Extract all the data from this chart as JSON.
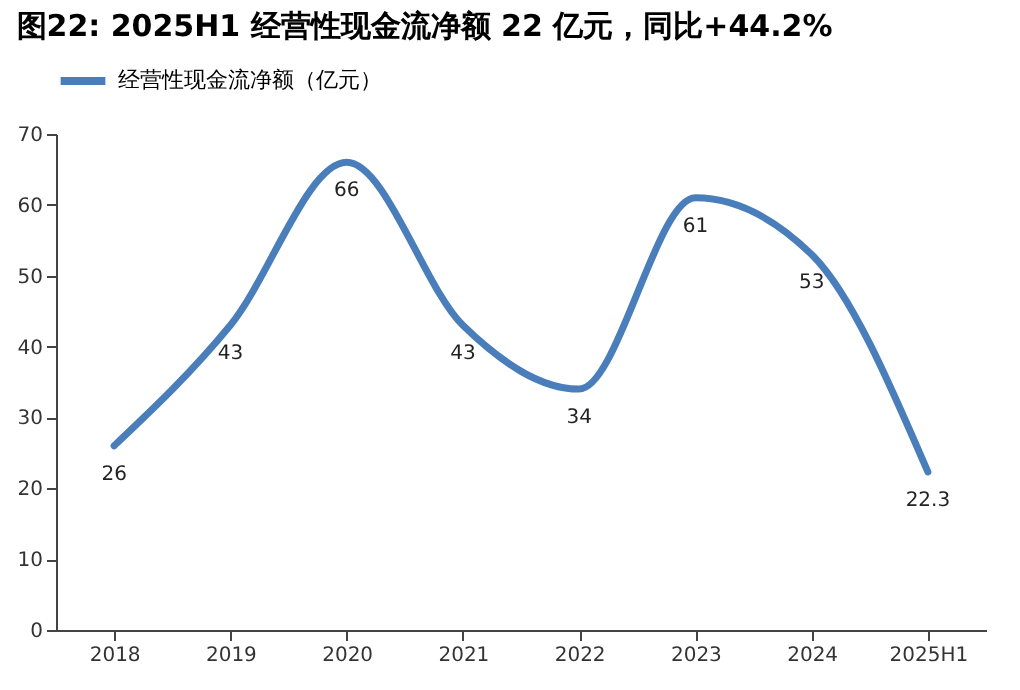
{
  "chart_data": {
    "type": "line",
    "title": "图22:  2025H1 经营性现金流净额 22 亿元，同比+44.2%",
    "categories": [
      "2018",
      "2019",
      "2020",
      "2021",
      "2022",
      "2023",
      "2024",
      "2025H1"
    ],
    "series": [
      {
        "name": "经营性现金流净额（亿元）",
        "color": "#4a7ebb",
        "values": [
          26,
          43,
          66,
          43,
          34,
          61,
          53,
          22.3
        ]
      }
    ],
    "ylim": [
      0,
      70
    ],
    "yticks": [
      0,
      10,
      20,
      30,
      40,
      50,
      60,
      70
    ],
    "grid": false,
    "legend": "top",
    "data_labels": true,
    "marker": "none",
    "line_style": "solid"
  }
}
